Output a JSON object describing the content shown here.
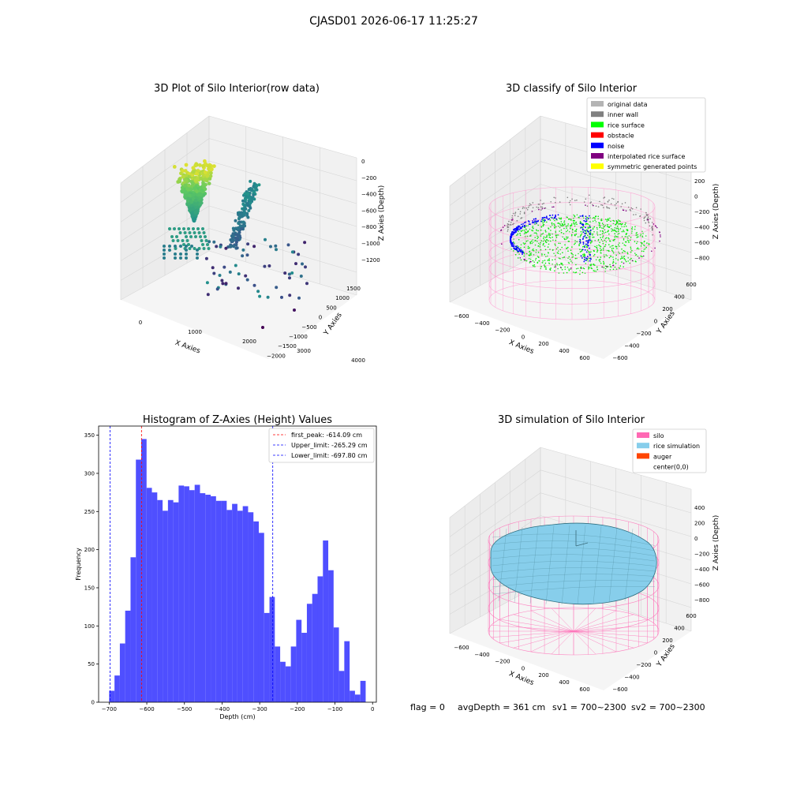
{
  "figure": {
    "suptitle": "CJASD01 2026-06-17 11:25:27",
    "footer": {
      "flag": "flag = 0",
      "avg_depth": "avgDepth = 361 cm",
      "sv1": "sv1 = 700~2300",
      "sv2": "sv2 = 700~2300"
    }
  },
  "colors": {
    "histogram_bar": "#4b4bff",
    "first_peak_line": "#ff0000",
    "limit_lines": "#0000ff",
    "original_data": "#b4b4b4",
    "inner_wall": "#808080",
    "rice_surface": "#00ff00",
    "obstacle": "#ff0000",
    "noise": "#0000ff",
    "interpolated": "#800080",
    "symmetric": "#ffff00",
    "silo": "#ff69b4",
    "rice_simulation": "#87ceeb",
    "auger": "#ff4500"
  },
  "chart_data": [
    {
      "type": "scatter",
      "title": "3D Plot of Silo Interior(row data)",
      "projection": "3d",
      "xlabel": "X Axies",
      "ylabel": "Y Axies",
      "zlabel": "Z Axies (Depth)",
      "x_ticks": [
        "0",
        "1000",
        "2000",
        "3000",
        "4000"
      ],
      "y_ticks": [
        "1500",
        "1000",
        "500",
        "0",
        "−500",
        "−1000",
        "−1500",
        "−2000"
      ],
      "z_ticks": [
        "0",
        "−200",
        "−400",
        "−600",
        "−800",
        "−1000",
        "−1200"
      ],
      "colormap": "viridis"
    },
    {
      "type": "scatter",
      "title": "3D classify of Silo Interior",
      "projection": "3d",
      "xlabel": "X Axies",
      "ylabel": "Y Axies",
      "zlabel": "Z Axies (Depth)",
      "x_ticks": [
        "−600",
        "−400",
        "−200",
        "0",
        "200",
        "400",
        "600"
      ],
      "y_ticks": [
        "600",
        "400",
        "200",
        "0",
        "−200",
        "−400",
        "−600"
      ],
      "z_ticks": [
        "200",
        "0",
        "−200",
        "−400",
        "−600",
        "−800"
      ],
      "legend_position": "top-right",
      "legend": [
        {
          "label": "original data",
          "color": "#b4b4b4"
        },
        {
          "label": "inner wall",
          "color": "#808080"
        },
        {
          "label": "rice surface",
          "color": "#00ff00"
        },
        {
          "label": "obstacle",
          "color": "#ff0000"
        },
        {
          "label": "noise",
          "color": "#0000ff"
        },
        {
          "label": "interpolated rice surface",
          "color": "#800080"
        },
        {
          "label": "symmetric generated points",
          "color": "#ffff00"
        }
      ]
    },
    {
      "type": "bar",
      "title": "Histogram of Z-Axies (Height) Values",
      "xlabel": "Depth (cm)",
      "ylabel": "Frequency",
      "xlim": [
        -728,
        10
      ],
      "ylim": [
        0,
        362
      ],
      "x_ticks": [
        -700,
        -600,
        -500,
        -400,
        -300,
        -200,
        -100,
        0
      ],
      "y_ticks": [
        0,
        50,
        100,
        150,
        200,
        250,
        300,
        350
      ],
      "bin_start": -700,
      "bin_width": 14.2,
      "values": [
        15,
        35,
        77,
        120,
        190,
        318,
        345,
        281,
        275,
        265,
        251,
        265,
        262,
        284,
        283,
        278,
        285,
        274,
        272,
        270,
        264,
        264,
        252,
        260,
        251,
        257,
        249,
        237,
        222,
        117,
        138,
        73,
        53,
        47,
        73,
        108,
        91,
        129,
        142,
        165,
        212,
        173,
        98,
        41,
        80,
        15,
        10,
        28
      ],
      "lines": [
        {
          "label": "first_peak: -614.09 cm",
          "x": -614.09,
          "color": "#ff0000"
        },
        {
          "label": "Upper_limit: -265.29 cm",
          "x": -265.29,
          "color": "#0000ff"
        },
        {
          "label": "Lower_limit: -697.80 cm",
          "x": -697.8,
          "color": "#0000ff"
        }
      ],
      "legend_position": "top-right"
    },
    {
      "type": "area",
      "title": "3D simulation of Silo Interior",
      "projection": "3d",
      "xlabel": "X Axies",
      "ylabel": "Y Axies",
      "zlabel": "Z Axies (Depth)",
      "x_ticks": [
        "−600",
        "−400",
        "−200",
        "0",
        "200",
        "400",
        "600"
      ],
      "y_ticks": [
        "600",
        "400",
        "200",
        "0",
        "−200",
        "−400",
        "−600"
      ],
      "z_ticks": [
        "400",
        "200",
        "0",
        "−200",
        "−400",
        "−600",
        "−800"
      ],
      "legend_position": "top-right",
      "legend": [
        {
          "label": "silo",
          "color": "#ff69b4"
        },
        {
          "label": "rice simulation",
          "color": "#87ceeb"
        },
        {
          "label": "auger",
          "color": "#ff4500"
        },
        {
          "label": "center(0,0)",
          "color": "#ffffff"
        }
      ]
    }
  ]
}
